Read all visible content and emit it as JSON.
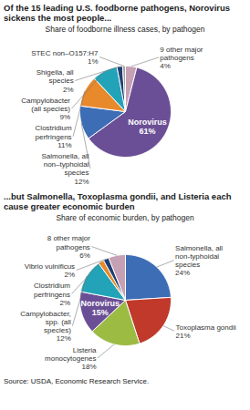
{
  "chart_data": [
    {
      "type": "pie",
      "title": "Of the 15 leading U.S. foodborne pathogens, Norovirus sickens the most people...",
      "subtitle": "Share of foodborne illness cases, by pathogen",
      "categories": [
        "9 other major pathogens",
        "Norovirus",
        "Salmonella, all non–typhoidal species",
        "Clostridium perfringens",
        "Campylobacter (all species)",
        "Shigella, all species",
        "STEC non–O157:H7"
      ],
      "values": [
        4,
        61,
        12,
        11,
        9,
        2,
        1
      ],
      "value_labels": [
        "4%",
        "61%",
        "12%",
        "11%",
        "9%",
        "2%",
        "1%"
      ],
      "colors": [
        "#c6a0b5",
        "#6b4f96",
        "#3d6db5",
        "#e8892c",
        "#22a3b8",
        "#203f73",
        "#a3a3a3"
      ],
      "data_labels": true
    },
    {
      "type": "pie",
      "title": "...but Salmonella, Toxoplasma gondii, and Listeria each cause greater economic burden",
      "subtitle": "Share of economic burden, by pathogen",
      "categories": [
        "Salmonella, all non-typhoidal species",
        "Toxoplasma gondii",
        "Listeria monocytogenes",
        "Norovirus",
        "Campylobacter, spp. (all species)",
        "Clostridium perfringens",
        "Vibrio vulnificus",
        "8 other major pathogens"
      ],
      "values": [
        24,
        21,
        18,
        15,
        12,
        2,
        2,
        6
      ],
      "value_labels": [
        "24%",
        "21%",
        "18%",
        "15%",
        "12%",
        "2%",
        "2%",
        "6%"
      ],
      "colors": [
        "#3d6db5",
        "#c0392b",
        "#9bbb43",
        "#6b4f96",
        "#22a3b8",
        "#e8892c",
        "#203f73",
        "#c6a0b5"
      ],
      "data_labels": true,
      "caption": "Source: USDA, Economic Research Service."
    }
  ]
}
